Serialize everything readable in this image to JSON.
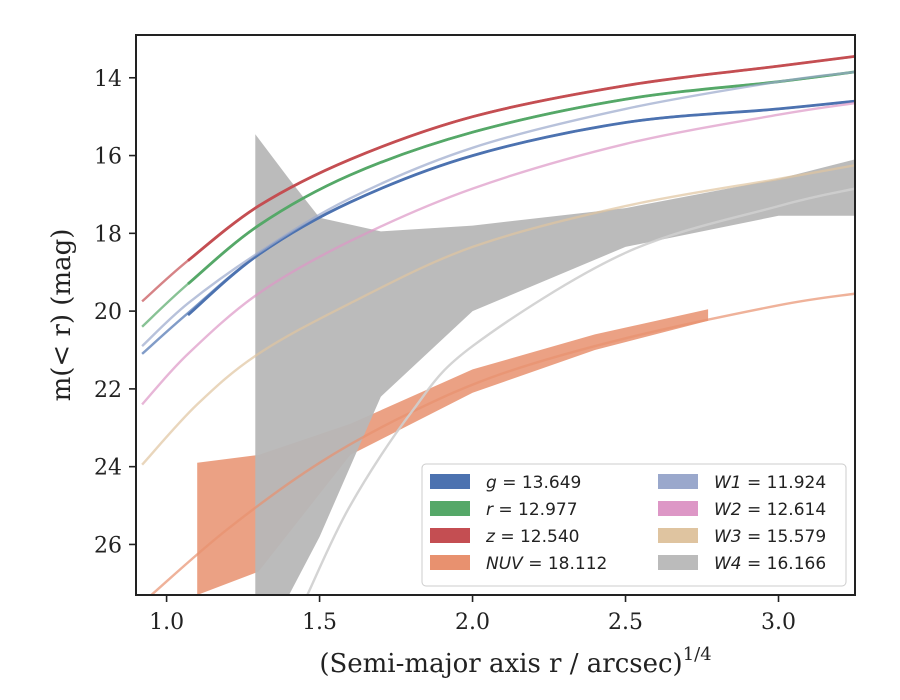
{
  "chart_data": {
    "type": "line",
    "xlabel": "(Semi-major axis r / arcsec)",
    "xlabel_exp": "1/4",
    "ylabel": "m(< r) (mag)",
    "xlim": [
      0.9,
      3.25
    ],
    "ylim": [
      27.3,
      12.9
    ],
    "y_inverted": true,
    "xticks": [
      1.0,
      1.5,
      2.0,
      2.5,
      3.0
    ],
    "xtick_labels": [
      "1.0",
      "1.5",
      "2.0",
      "2.5",
      "3.0"
    ],
    "yticks": [
      14,
      16,
      18,
      20,
      22,
      24,
      26
    ],
    "ytick_labels": [
      "14",
      "16",
      "18",
      "20",
      "22",
      "24",
      "26"
    ],
    "grid": false,
    "legend_position": "lower-right",
    "series": [
      {
        "name": "g",
        "value": "13.649",
        "color": "#4c72b0",
        "x_measured": [
          1.07,
          1.3,
          1.6,
          2.0,
          2.5,
          3.0,
          3.25
        ],
        "y_measured": [
          20.1,
          18.55,
          17.2,
          16.0,
          15.15,
          14.8,
          14.6
        ],
        "x_model": [
          0.92,
          1.07,
          1.3,
          1.6,
          2.0,
          2.5,
          3.0,
          3.25
        ],
        "y_model": [
          21.1,
          20.05,
          18.55,
          17.2,
          16.0,
          15.15,
          14.8,
          14.6
        ]
      },
      {
        "name": "r",
        "value": "12.977",
        "color": "#55a868",
        "x_measured": [
          1.07,
          1.3,
          1.6,
          2.0,
          2.5,
          3.0,
          3.25
        ],
        "y_measured": [
          19.3,
          17.8,
          16.5,
          15.4,
          14.55,
          14.1,
          13.85
        ],
        "x_model": [
          0.92,
          1.07,
          1.3,
          1.6,
          2.0,
          2.5,
          3.0,
          3.25
        ],
        "y_model": [
          20.4,
          19.3,
          17.8,
          16.5,
          15.4,
          14.55,
          14.1,
          13.85
        ]
      },
      {
        "name": "z",
        "value": "12.540",
        "color": "#c44e52",
        "x_measured": [
          1.07,
          1.3,
          1.6,
          2.0,
          2.5,
          3.0,
          3.25
        ],
        "y_measured": [
          18.7,
          17.3,
          16.1,
          15.0,
          14.2,
          13.7,
          13.45
        ],
        "x_model": [
          0.92,
          1.07,
          1.3,
          1.6,
          2.0,
          2.5,
          3.0,
          3.25
        ],
        "y_model": [
          19.75,
          18.7,
          17.3,
          16.1,
          15.0,
          14.2,
          13.7,
          13.45
        ]
      },
      {
        "name": "NUV",
        "value": "18.112",
        "color": "#e8916f",
        "x_measured": [
          1.1,
          1.3,
          1.6,
          2.0,
          2.4,
          2.77
        ],
        "y_measured": [
          24.6,
          24.3,
          23.3,
          21.8,
          20.8,
          20.1
        ],
        "y_measured_bright": [
          23.9,
          23.7,
          22.9,
          21.5,
          20.6,
          19.95
        ],
        "y_measured_faint": [
          27.3,
          26.7,
          23.7,
          22.1,
          21.0,
          20.25
        ],
        "x_model": [
          0.95,
          1.2,
          1.5,
          1.8,
          2.1,
          2.5,
          3.0,
          3.25
        ],
        "y_model": [
          27.3,
          25.6,
          23.9,
          22.6,
          21.6,
          20.7,
          19.85,
          19.55
        ]
      },
      {
        "name": "W1",
        "value": "11.924",
        "color": "#9aa8cc",
        "x_model": [
          0.92,
          1.07,
          1.3,
          1.6,
          2.0,
          2.5,
          3.0,
          3.25
        ],
        "y_model": [
          20.9,
          19.8,
          18.5,
          17.1,
          15.8,
          14.8,
          14.1,
          13.85
        ]
      },
      {
        "name": "W2",
        "value": "12.614",
        "color": "#dd97c6",
        "x_model": [
          0.92,
          1.07,
          1.3,
          1.6,
          2.0,
          2.5,
          3.0,
          3.25
        ],
        "y_model": [
          22.4,
          21.1,
          19.55,
          18.2,
          16.85,
          15.7,
          14.95,
          14.65
        ]
      },
      {
        "name": "W3",
        "value": "15.579",
        "color": "#dfc4a0",
        "x_model": [
          0.92,
          1.1,
          1.3,
          1.6,
          2.0,
          2.5,
          3.0,
          3.25
        ],
        "y_model": [
          23.95,
          22.4,
          21.1,
          19.8,
          18.35,
          17.3,
          16.6,
          16.25
        ]
      },
      {
        "name": "W4",
        "value": "16.166",
        "color": "#b7b7b7",
        "x_measured": [
          1.29,
          1.4,
          1.5,
          1.7,
          2.0,
          2.5,
          3.0,
          3.25
        ],
        "y_measured": [
          23.0,
          21.0,
          19.8,
          19.2,
          18.6,
          17.7,
          17.0,
          16.6
        ],
        "y_measured_bright": [
          15.45,
          16.6,
          17.6,
          17.95,
          17.8,
          17.35,
          16.6,
          16.1
        ],
        "y_measured_faint": [
          27.3,
          27.3,
          25.8,
          22.2,
          20.0,
          18.35,
          17.55,
          17.55
        ],
        "x_model": [
          1.46,
          1.6,
          1.8,
          2.0,
          2.5,
          3.0,
          3.25
        ],
        "y_model": [
          27.3,
          25.0,
          22.6,
          20.9,
          18.5,
          17.3,
          16.85
        ]
      }
    ]
  }
}
